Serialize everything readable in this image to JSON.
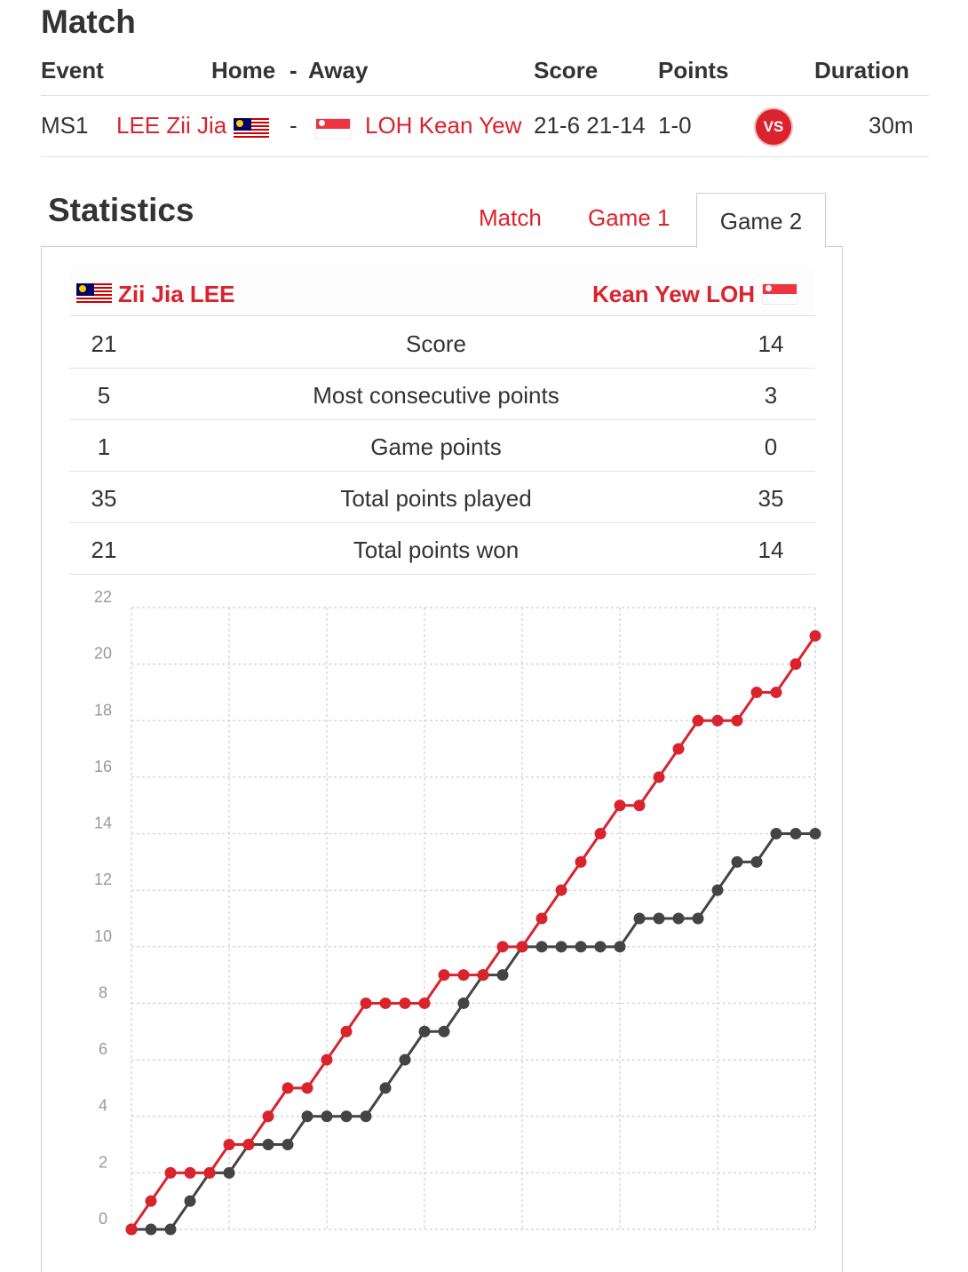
{
  "match": {
    "title": "Match",
    "headers": {
      "event": "Event",
      "home": "Home",
      "dash": "-",
      "away": "Away",
      "score": "Score",
      "points": "Points",
      "duration": "Duration"
    },
    "row": {
      "event": "MS1",
      "home_player": "LEE Zii Jia",
      "dash": "-",
      "away_player": "LOH Kean Yew",
      "score": "21-6 21-14",
      "points": "1-0",
      "vs_label": "VS",
      "duration": "30m"
    }
  },
  "statistics": {
    "title": "Statistics",
    "tabs": [
      {
        "label": "Match",
        "active": false
      },
      {
        "label": "Game 1",
        "active": false
      },
      {
        "label": "Game 2",
        "active": true
      }
    ],
    "home_player": "Zii Jia LEE",
    "away_player": "Kean Yew LOH",
    "rows": [
      {
        "home": "21",
        "label": "Score",
        "away": "14"
      },
      {
        "home": "5",
        "label": "Most consecutive points",
        "away": "3"
      },
      {
        "home": "1",
        "label": "Game points",
        "away": "0"
      },
      {
        "home": "35",
        "label": "Total points played",
        "away": "35"
      },
      {
        "home": "21",
        "label": "Total points won",
        "away": "14"
      }
    ]
  },
  "colors": {
    "accent": "#d9232d",
    "away_line": "#444444"
  },
  "chart_data": {
    "type": "line",
    "x": [
      0,
      1,
      2,
      3,
      4,
      5,
      6,
      7,
      8,
      9,
      10,
      11,
      12,
      13,
      14,
      15,
      16,
      17,
      18,
      19,
      20,
      21,
      22,
      23,
      24,
      25,
      26,
      27,
      28,
      29,
      30,
      31,
      32,
      33,
      34,
      35
    ],
    "series": [
      {
        "values": [
          0,
          1,
          2,
          2,
          2,
          3,
          3,
          4,
          5,
          5,
          6,
          7,
          8,
          8,
          8,
          8,
          9,
          9,
          9,
          10,
          10,
          11,
          12,
          13,
          14,
          15,
          15,
          16,
          17,
          18,
          18,
          18,
          19,
          19,
          20,
          21
        ]
      },
      {
        "values": [
          0,
          0,
          0,
          1,
          2,
          2,
          3,
          3,
          3,
          4,
          4,
          4,
          4,
          5,
          6,
          7,
          7,
          8,
          9,
          9,
          10,
          10,
          10,
          10,
          10,
          10,
          11,
          11,
          11,
          11,
          12,
          13,
          13,
          14,
          14,
          14
        ]
      }
    ],
    "y_ticks": [
      "0",
      "2",
      "4",
      "6",
      "8",
      "10",
      "12",
      "14",
      "16",
      "18",
      "20",
      "22"
    ],
    "ylim": [
      0,
      22
    ],
    "xlim": [
      0,
      35
    ],
    "grid": true
  }
}
